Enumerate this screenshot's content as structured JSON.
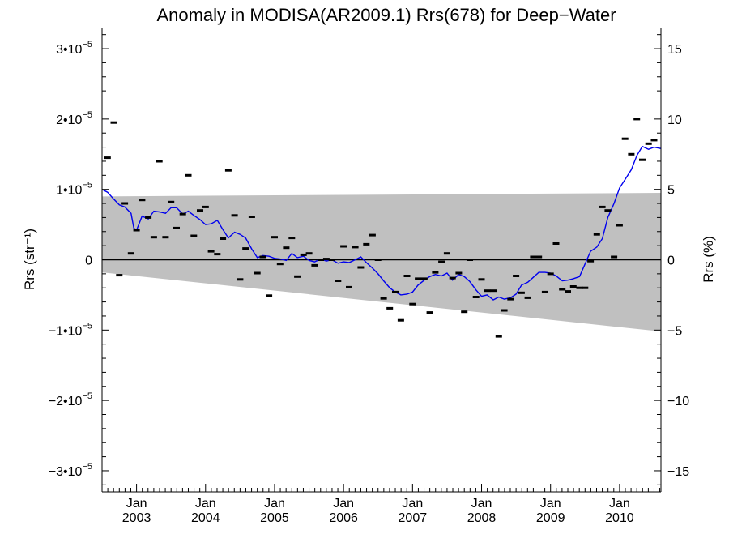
{
  "chart_data": {
    "type": "scatter",
    "title": "Anomaly in MODISA(AR2009.1) Rrs(678) for Deep−Water",
    "ylabel_left": "Rrs (str⁻¹)",
    "ylabel_right": "Rrs (%)",
    "xlim": [
      2002.5,
      2010.6
    ],
    "ylim_left": [
      -3.3e-05,
      3.3e-05
    ],
    "ylim_right": [
      -16.5,
      16.5
    ],
    "x_ticks": [
      {
        "x": 2003.0,
        "month": "Jan",
        "year": "2003"
      },
      {
        "x": 2004.0,
        "month": "Jan",
        "year": "2004"
      },
      {
        "x": 2005.0,
        "month": "Jan",
        "year": "2005"
      },
      {
        "x": 2006.0,
        "month": "Jan",
        "year": "2006"
      },
      {
        "x": 2007.0,
        "month": "Jan",
        "year": "2007"
      },
      {
        "x": 2008.0,
        "month": "Jan",
        "year": "2008"
      },
      {
        "x": 2009.0,
        "month": "Jan",
        "year": "2009"
      },
      {
        "x": 2010.0,
        "month": "Jan",
        "year": "2010"
      }
    ],
    "y_left_ticks": [
      {
        "value": 3e-05,
        "mant": "3•10",
        "exp": "−5"
      },
      {
        "value": 2e-05,
        "mant": "2•10",
        "exp": "−5"
      },
      {
        "value": 1e-05,
        "mant": "1•10",
        "exp": "−5"
      },
      {
        "value": 0,
        "mant": "0",
        "exp": ""
      },
      {
        "value": -1e-05,
        "mant": "−1•10",
        "exp": "−5"
      },
      {
        "value": -2e-05,
        "mant": "−2•10",
        "exp": "−5"
      },
      {
        "value": -3e-05,
        "mant": "−3•10",
        "exp": "−5"
      }
    ],
    "y_right_ticks": [
      {
        "value": 15,
        "label": "15"
      },
      {
        "value": 10,
        "label": "10"
      },
      {
        "value": 5,
        "label": "5"
      },
      {
        "value": 0,
        "label": "0"
      },
      {
        "value": -5,
        "label": "−5"
      },
      {
        "value": -10,
        "label": "−10"
      },
      {
        "value": -15,
        "label": "−15"
      }
    ],
    "band": {
      "x": [
        2002.5,
        2010.6
      ],
      "upper": [
        9e-06,
        9.5e-06
      ],
      "lower": [
        -1.8e-06,
        -1.02e-05
      ]
    },
    "zero_line": 0,
    "points": [
      [
        2002.58,
        1.45e-05
      ],
      [
        2002.67,
        1.95e-05
      ],
      [
        2002.75,
        -2.2e-06
      ],
      [
        2002.83,
        8e-06
      ],
      [
        2002.92,
        9e-07
      ],
      [
        2003.0,
        4.2e-06
      ],
      [
        2003.08,
        8.5e-06
      ],
      [
        2003.17,
        6e-06
      ],
      [
        2003.25,
        3.2e-06
      ],
      [
        2003.33,
        1.4e-05
      ],
      [
        2003.42,
        3.2e-06
      ],
      [
        2003.5,
        8.2e-06
      ],
      [
        2003.58,
        4.5e-06
      ],
      [
        2003.67,
        6.5e-06
      ],
      [
        2003.75,
        1.2e-05
      ],
      [
        2003.83,
        3.4e-06
      ],
      [
        2003.92,
        7e-06
      ],
      [
        2004.0,
        7.5e-06
      ],
      [
        2004.08,
        1.2e-06
      ],
      [
        2004.17,
        8e-07
      ],
      [
        2004.25,
        3e-06
      ],
      [
        2004.33,
        1.27e-05
      ],
      [
        2004.42,
        6.3e-06
      ],
      [
        2004.5,
        -2.8e-06
      ],
      [
        2004.58,
        1.6e-06
      ],
      [
        2004.67,
        6.1e-06
      ],
      [
        2004.75,
        -1.9e-06
      ],
      [
        2004.83,
        4e-07
      ],
      [
        2004.92,
        -5.1e-06
      ],
      [
        2005.0,
        3.2e-06
      ],
      [
        2005.08,
        -6e-07
      ],
      [
        2005.17,
        1.7e-06
      ],
      [
        2005.25,
        3.1e-06
      ],
      [
        2005.33,
        -2.4e-06
      ],
      [
        2005.42,
        7e-07
      ],
      [
        2005.5,
        9e-07
      ],
      [
        2005.58,
        -8e-07
      ],
      [
        2005.67,
        0.0
      ],
      [
        2005.75,
        1e-07
      ],
      [
        2005.83,
        0.0
      ],
      [
        2005.92,
        -3e-06
      ],
      [
        2006.0,
        1.9e-06
      ],
      [
        2006.08,
        -3.9e-06
      ],
      [
        2006.17,
        1.8e-06
      ],
      [
        2006.25,
        -1.1e-06
      ],
      [
        2006.33,
        2.2e-06
      ],
      [
        2006.42,
        3.5e-06
      ],
      [
        2006.5,
        0.0
      ],
      [
        2006.58,
        -5.5e-06
      ],
      [
        2006.67,
        -6.9e-06
      ],
      [
        2006.75,
        -4.6e-06
      ],
      [
        2006.83,
        -8.6e-06
      ],
      [
        2006.92,
        -2.3e-06
      ],
      [
        2007.0,
        -6.3e-06
      ],
      [
        2007.08,
        -2.7e-06
      ],
      [
        2007.17,
        -2.7e-06
      ],
      [
        2007.25,
        -7.5e-06
      ],
      [
        2007.33,
        -1.8e-06
      ],
      [
        2007.42,
        -3e-07
      ],
      [
        2007.5,
        9e-07
      ],
      [
        2007.58,
        -2.6e-06
      ],
      [
        2007.67,
        -1.9e-06
      ],
      [
        2007.75,
        -7.4e-06
      ],
      [
        2007.83,
        0.0
      ],
      [
        2007.92,
        -5.3e-06
      ],
      [
        2008.0,
        -2.8e-06
      ],
      [
        2008.08,
        -4.4e-06
      ],
      [
        2008.17,
        -4.4e-06
      ],
      [
        2008.25,
        -1.09e-05
      ],
      [
        2008.33,
        -7.2e-06
      ],
      [
        2008.42,
        -5.6e-06
      ],
      [
        2008.5,
        -2.3e-06
      ],
      [
        2008.58,
        -4.7e-06
      ],
      [
        2008.67,
        -5.4e-06
      ],
      [
        2008.75,
        4e-07
      ],
      [
        2008.83,
        4e-07
      ],
      [
        2008.92,
        -4.6e-06
      ],
      [
        2009.0,
        -2e-06
      ],
      [
        2009.08,
        2.3e-06
      ],
      [
        2009.17,
        -4.2e-06
      ],
      [
        2009.25,
        -4.5e-06
      ],
      [
        2009.33,
        -3.8e-06
      ],
      [
        2009.42,
        -4e-06
      ],
      [
        2009.5,
        -4e-06
      ],
      [
        2009.58,
        -2e-07
      ],
      [
        2009.67,
        3.6e-06
      ],
      [
        2009.75,
        7.5e-06
      ],
      [
        2009.83,
        7e-06
      ],
      [
        2009.92,
        4e-07
      ],
      [
        2010.0,
        4.9e-06
      ],
      [
        2010.08,
        1.72e-05
      ],
      [
        2010.17,
        1.5e-05
      ],
      [
        2010.25,
        2e-05
      ],
      [
        2010.33,
        1.42e-05
      ],
      [
        2010.42,
        1.65e-05
      ],
      [
        2010.5,
        1.7e-05
      ]
    ],
    "smooth_line": [
      [
        2002.5,
        1e-05
      ],
      [
        2002.58,
        9.6e-06
      ],
      [
        2002.67,
        8.6e-06
      ],
      [
        2002.75,
        7.8e-06
      ],
      [
        2002.83,
        7.5e-06
      ],
      [
        2002.92,
        6.6e-06
      ],
      [
        2002.96,
        4.5e-06
      ],
      [
        2003.0,
        4.2e-06
      ],
      [
        2003.08,
        6.2e-06
      ],
      [
        2003.17,
        5.8e-06
      ],
      [
        2003.25,
        6.9e-06
      ],
      [
        2003.33,
        6.8e-06
      ],
      [
        2003.42,
        6.6e-06
      ],
      [
        2003.5,
        7.4e-06
      ],
      [
        2003.58,
        7.4e-06
      ],
      [
        2003.67,
        6.5e-06
      ],
      [
        2003.75,
        6.9e-06
      ],
      [
        2003.83,
        6.3e-06
      ],
      [
        2003.92,
        5.7e-06
      ],
      [
        2004.0,
        5e-06
      ],
      [
        2004.08,
        5.1e-06
      ],
      [
        2004.17,
        5.6e-06
      ],
      [
        2004.25,
        4.3e-06
      ],
      [
        2004.33,
        3.1e-06
      ],
      [
        2004.42,
        3.9e-06
      ],
      [
        2004.5,
        3.6e-06
      ],
      [
        2004.58,
        3.1e-06
      ],
      [
        2004.67,
        1.5e-06
      ],
      [
        2004.75,
        3e-07
      ],
      [
        2004.83,
        6e-07
      ],
      [
        2004.92,
        5e-07
      ],
      [
        2005.0,
        2e-07
      ],
      [
        2005.08,
        1e-07
      ],
      [
        2005.17,
        -1e-07
      ],
      [
        2005.25,
        9e-07
      ],
      [
        2005.33,
        3e-07
      ],
      [
        2005.42,
        5e-07
      ],
      [
        2005.5,
        -1e-07
      ],
      [
        2005.58,
        -3e-07
      ],
      [
        2005.67,
        1e-07
      ],
      [
        2005.75,
        -2e-07
      ],
      [
        2005.83,
        0.0
      ],
      [
        2005.92,
        -5e-07
      ],
      [
        2006.0,
        -3e-07
      ],
      [
        2006.08,
        -4e-07
      ],
      [
        2006.17,
        0.0
      ],
      [
        2006.25,
        4e-07
      ],
      [
        2006.33,
        -4e-07
      ],
      [
        2006.42,
        -1.2e-06
      ],
      [
        2006.5,
        -2e-06
      ],
      [
        2006.58,
        -3e-06
      ],
      [
        2006.67,
        -4e-06
      ],
      [
        2006.75,
        -4.6e-06
      ],
      [
        2006.83,
        -5e-06
      ],
      [
        2006.92,
        -4.9e-06
      ],
      [
        2007.0,
        -4.6e-06
      ],
      [
        2007.08,
        -3.6e-06
      ],
      [
        2007.17,
        -2.9e-06
      ],
      [
        2007.25,
        -2.4e-06
      ],
      [
        2007.33,
        -2.1e-06
      ],
      [
        2007.42,
        -2.3e-06
      ],
      [
        2007.5,
        -1.9e-06
      ],
      [
        2007.58,
        -2.9e-06
      ],
      [
        2007.67,
        -2.1e-06
      ],
      [
        2007.75,
        -2.4e-06
      ],
      [
        2007.83,
        -3.1e-06
      ],
      [
        2007.92,
        -4.3e-06
      ],
      [
        2008.0,
        -5.2e-06
      ],
      [
        2008.08,
        -5e-06
      ],
      [
        2008.17,
        -5.7e-06
      ],
      [
        2008.25,
        -5.3e-06
      ],
      [
        2008.33,
        -5.6e-06
      ],
      [
        2008.42,
        -5.4e-06
      ],
      [
        2008.5,
        -4.9e-06
      ],
      [
        2008.58,
        -3.6e-06
      ],
      [
        2008.67,
        -3.2e-06
      ],
      [
        2008.75,
        -2.5e-06
      ],
      [
        2008.83,
        -1.8e-06
      ],
      [
        2008.92,
        -1.8e-06
      ],
      [
        2009.0,
        -1.9e-06
      ],
      [
        2009.08,
        -2.3e-06
      ],
      [
        2009.17,
        -3e-06
      ],
      [
        2009.25,
        -2.9e-06
      ],
      [
        2009.33,
        -2.7e-06
      ],
      [
        2009.42,
        -2.4e-06
      ],
      [
        2009.5,
        -6e-07
      ],
      [
        2009.58,
        1.2e-06
      ],
      [
        2009.67,
        1.8e-06
      ],
      [
        2009.75,
        3e-06
      ],
      [
        2009.83,
        6e-06
      ],
      [
        2009.92,
        8e-06
      ],
      [
        2010.0,
        1.02e-05
      ],
      [
        2010.08,
        1.14e-05
      ],
      [
        2010.17,
        1.28e-05
      ],
      [
        2010.25,
        1.48e-05
      ],
      [
        2010.33,
        1.61e-05
      ],
      [
        2010.42,
        1.57e-05
      ],
      [
        2010.5,
        1.6e-05
      ],
      [
        2010.6,
        1.58e-05
      ]
    ],
    "colors": {
      "band": "#c0c0c0",
      "line": "#0000ee",
      "points": "#000000",
      "axes": "#000000"
    }
  }
}
